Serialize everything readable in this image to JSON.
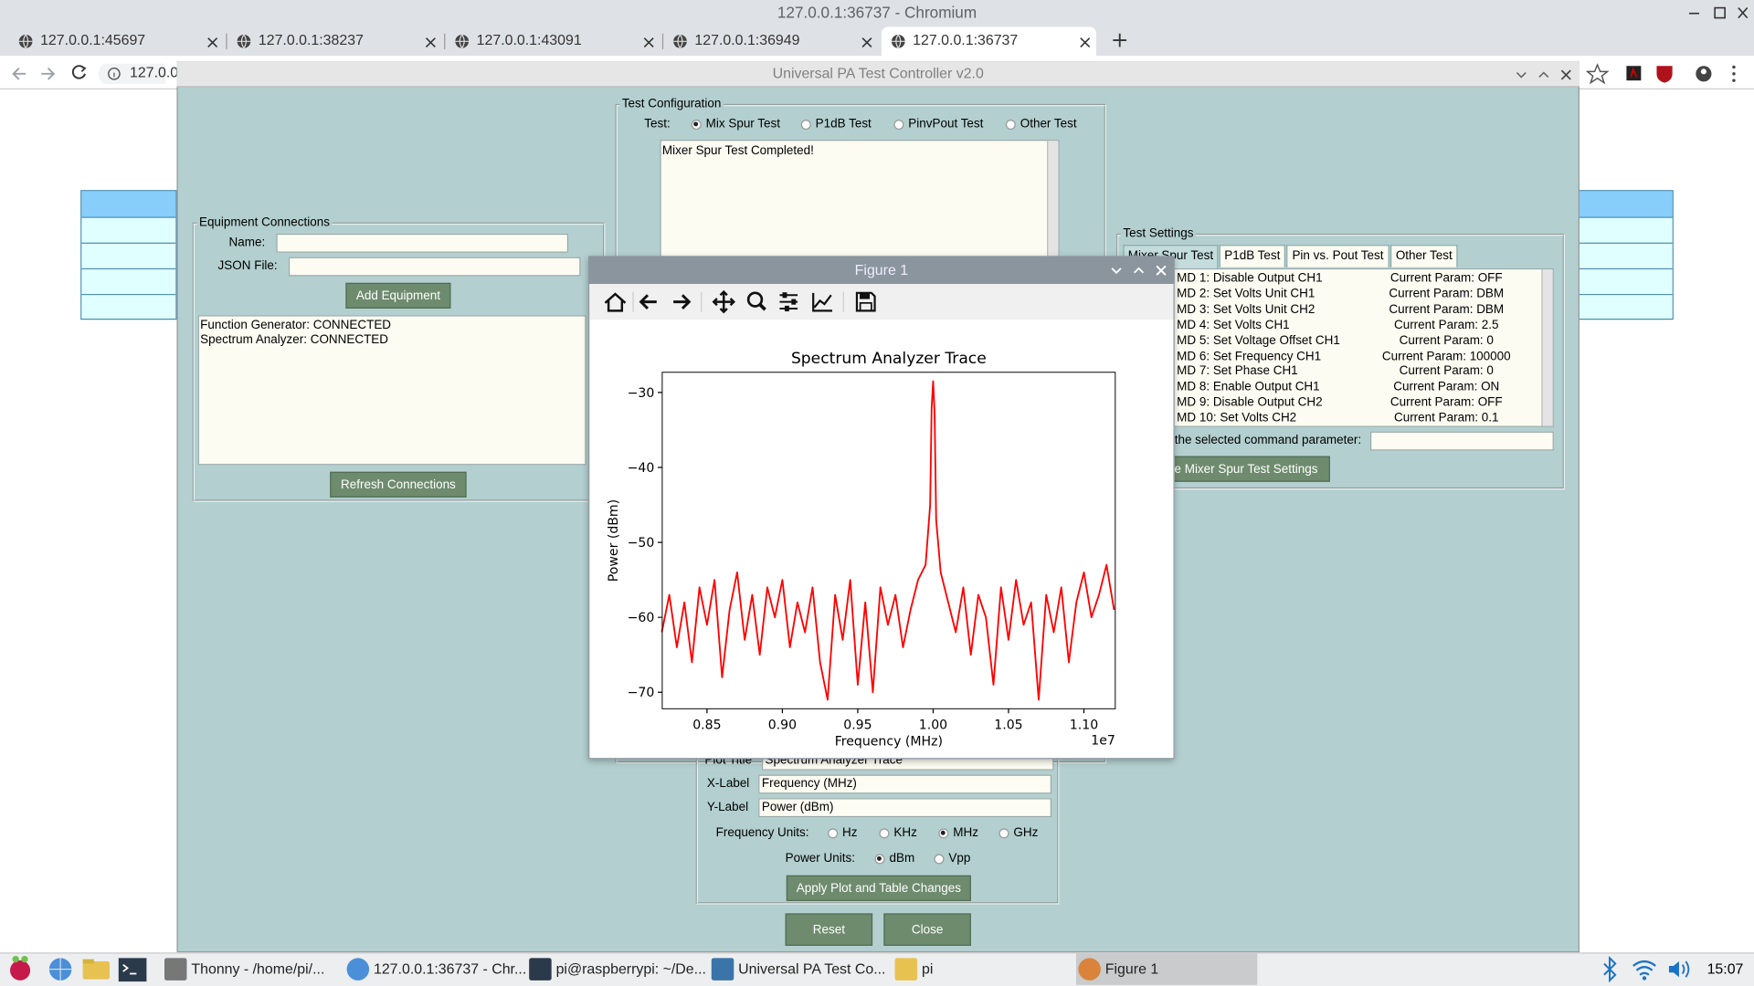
{
  "browser": {
    "window_title": "127.0.0.1:36737 - Chromium",
    "tabs": [
      "127.0.0.1:45697",
      "127.0.0.1:38237",
      "127.0.0.1:43091",
      "127.0.0.1:36949",
      "127.0.0.1:36737"
    ],
    "active_tab": 4,
    "address": "127.0.0."
  },
  "app": {
    "title": "Universal PA Test Controller v2.0",
    "test_configuration": {
      "title": "Test Configuration",
      "test_label": "Test:",
      "options": [
        "Mix Spur Test",
        "P1dB Test",
        "PinvPout Test",
        "Other Test"
      ],
      "selected": 0,
      "status": "Mixer Spur Test Completed!"
    },
    "equipment": {
      "title": "Equipment Connections",
      "name_label": "Name:",
      "json_label": "JSON File:",
      "add_button": "Add Equipment",
      "list": [
        "Function Generator: CONNECTED",
        "Spectrum Analyzer: CONNECTED"
      ],
      "refresh_button": "Refresh Connections"
    },
    "test_settings": {
      "title": "Test Settings",
      "tabs": [
        "Mixer Spur Test",
        "P1dB Test",
        "Pin vs. Pout Test",
        "Other Test"
      ],
      "active_tab": 0,
      "commands": [
        {
          "command": "MD 1: Disable Output CH1",
          "param": "Current Param: OFF"
        },
        {
          "command": "MD 2: Set Volts Unit CH1",
          "param": "Current Param: DBM"
        },
        {
          "command": "MD 3: Set Volts Unit CH2",
          "param": "Current Param: DBM"
        },
        {
          "command": "MD 4: Set Volts CH1",
          "param": "Current Param: 2.5"
        },
        {
          "command": "MD 5: Set Voltage Offset CH1",
          "param": "Current Param: 0"
        },
        {
          "command": "MD 6: Set Frequency CH1",
          "param": "Current Param: 100000"
        },
        {
          "command": "MD 7: Set Phase CH1",
          "param": "Current Param: 0"
        },
        {
          "command": "MD 8: Enable Output CH1",
          "param": "Current Param: ON"
        },
        {
          "command": "MD 9: Disable Output CH2",
          "param": "Current Param: OFF"
        },
        {
          "command": "MD 10: Set Volts CH2",
          "param": "Current Param: 0.1"
        }
      ],
      "param_label": "the selected command parameter:",
      "save_button": "e Mixer Spur Test Settings"
    },
    "plot_settings": {
      "plot_title_label": "Plot Title",
      "plot_title": "Spectrum Analyzer Trace",
      "x_label_label": "X-Label",
      "x_label": "Frequency (MHz)",
      "y_label_label": "Y-Label",
      "y_label": "Power (dBm)",
      "freq_units_label": "Frequency Units:",
      "freq_units": [
        "Hz",
        "KHz",
        "MHz",
        "GHz"
      ],
      "freq_selected": 2,
      "power_units_label": "Power Units:",
      "power_units": [
        "dBm",
        "Vpp"
      ],
      "power_selected": 0,
      "apply_button": "Apply Plot and Table Changes"
    },
    "reset_button": "Reset",
    "close_button": "Close"
  },
  "figure_window": {
    "title": "Figure 1"
  },
  "chart_data": {
    "type": "line",
    "title": "Spectrum Analyzer Trace",
    "x_label": "Frequency (MHz)",
    "y_label": "Power (dBm)",
    "x_offset_label": "1e7",
    "color": "#ff0000",
    "x": [
      0.82,
      0.825,
      0.83,
      0.835,
      0.84,
      0.845,
      0.85,
      0.855,
      0.86,
      0.865,
      0.87,
      0.875,
      0.88,
      0.885,
      0.89,
      0.895,
      0.9,
      0.905,
      0.91,
      0.915,
      0.92,
      0.925,
      0.93,
      0.935,
      0.94,
      0.945,
      0.95,
      0.955,
      0.96,
      0.965,
      0.97,
      0.975,
      0.98,
      0.985,
      0.99,
      0.995,
      0.998,
      0.999,
      1.0,
      1.001,
      1.002,
      1.005,
      1.01,
      1.015,
      1.02,
      1.025,
      1.03,
      1.035,
      1.04,
      1.045,
      1.05,
      1.055,
      1.06,
      1.065,
      1.07,
      1.075,
      1.08,
      1.085,
      1.09,
      1.095,
      1.1,
      1.105,
      1.11,
      1.115,
      1.12
    ],
    "values": [
      -62,
      -57,
      -64,
      -58,
      -66,
      -56,
      -61,
      -55,
      -68,
      -59,
      -54,
      -63,
      -57,
      -65,
      -56,
      -60,
      -55,
      -64,
      -58,
      -62,
      -56,
      -66,
      -71,
      -57,
      -63,
      -55,
      -69,
      -58,
      -70,
      -56,
      -61,
      -57,
      -64,
      -59,
      -55,
      -53,
      -45,
      -32,
      -28.5,
      -33,
      -47,
      -54,
      -58,
      -62,
      -56,
      -65,
      -57,
      -60,
      -69,
      -56,
      -63,
      -55,
      -61,
      -58,
      -71,
      -57,
      -62,
      -56,
      -66,
      -58,
      -54,
      -60,
      -57,
      -53,
      -59
    ],
    "xlim": [
      0.8203,
      1.1208
    ],
    "ylim": [
      -72.2,
      -27.3
    ],
    "xticks": [
      0.85,
      {
        "value": 0.9,
        "label": "0.90"
      },
      0.95,
      {
        "value": 1.0,
        "label": "1.00"
      },
      1.05,
      {
        "value": 1.1,
        "label": "1.10"
      }
    ],
    "yticks": [
      {
        "value": -30,
        "label": "−30"
      },
      {
        "value": -40,
        "label": "−40"
      },
      {
        "value": -50,
        "label": "−50"
      },
      {
        "value": -60,
        "label": "−60"
      },
      {
        "value": -70,
        "label": "−70"
      }
    ],
    "grid": false
  },
  "taskbar": {
    "items": [
      "Thonny  -  /home/pi/...",
      "127.0.0.1:36737 - Chr...",
      "pi@raspberrypi: ~/De...",
      "Universal PA Test Co...",
      "pi",
      "Figure 1"
    ],
    "active_item": 5,
    "clock": "15:07"
  }
}
